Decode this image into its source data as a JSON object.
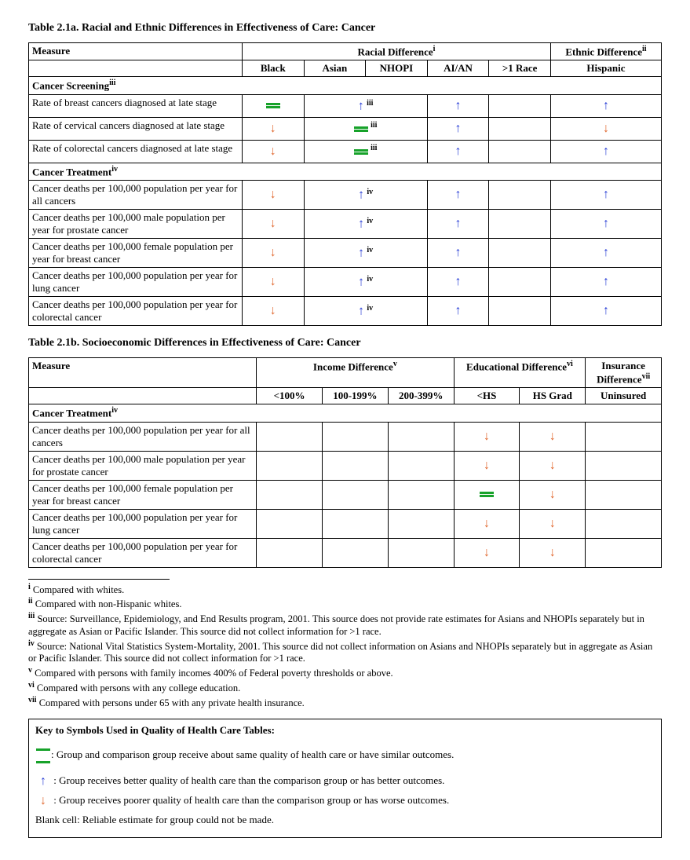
{
  "table_a": {
    "title": "Table 2.1a. Racial and Ethnic Differences in Effectiveness of Care: Cancer",
    "measure_header": "Measure",
    "racial_header": "Racial Difference",
    "racial_sup": "i",
    "ethnic_header": "Ethnic Difference",
    "ethnic_sup": "ii",
    "cols": [
      "Black",
      "Asian",
      "NHOPI",
      "AI/AN",
      ">1 Race",
      "Hispanic"
    ],
    "section1": {
      "label": "Cancer Screening",
      "sup": "iii"
    },
    "section2": {
      "label": "Cancer Treatment",
      "sup": "iv"
    },
    "rows_s1": [
      {
        "m": "Rate of breast cancers diagnosed at late stage",
        "cells": [
          "eq",
          "up_span_iii",
          "",
          "up",
          "",
          "up"
        ]
      },
      {
        "m": "Rate of cervical cancers diagnosed at late stage",
        "cells": [
          "down",
          "eq_span_iii",
          "",
          "up",
          "",
          "down"
        ]
      },
      {
        "m": "Rate of colorectal cancers diagnosed at late stage",
        "cells": [
          "down",
          "eq_span_iii",
          "",
          "up",
          "",
          "up"
        ]
      }
    ],
    "rows_s2": [
      {
        "m": "Cancer deaths per 100,000 population per year for all cancers",
        "cells": [
          "down",
          "up_span_iv",
          "",
          "up",
          "",
          "up"
        ]
      },
      {
        "m": "Cancer deaths per 100,000 male population per year for prostate cancer",
        "cells": [
          "down",
          "up_span_iv",
          "",
          "up",
          "",
          "up"
        ]
      },
      {
        "m": "Cancer deaths per 100,000 female population per year for breast cancer",
        "cells": [
          "down",
          "up_span_iv",
          "",
          "up",
          "",
          "up"
        ]
      },
      {
        "m": "Cancer deaths per 100,000 population per year for lung cancer",
        "cells": [
          "down",
          "up_span_iv",
          "",
          "up",
          "",
          "up"
        ]
      },
      {
        "m": "Cancer deaths per 100,000 population per year for colorectal cancer",
        "cells": [
          "down",
          "up_span_iv",
          "",
          "up",
          "",
          "up"
        ]
      }
    ]
  },
  "table_b": {
    "title": "Table 2.1b. Socioeconomic Differences in Effectiveness of Care: Cancer",
    "measure_header": "Measure",
    "income_header": "Income Difference",
    "income_sup": "v",
    "edu_header": "Educational Difference",
    "edu_sup": "vi",
    "ins_header": "Insurance Difference",
    "ins_sup": "vii",
    "cols": [
      "<100%",
      "100-199%",
      "200-399%",
      "<HS",
      "HS Grad",
      "Uninsured"
    ],
    "section": {
      "label": "Cancer Treatment",
      "sup": "iv"
    },
    "rows": [
      {
        "m": "Cancer deaths per 100,000 population per year for all cancers",
        "cells": [
          "",
          "",
          "",
          "down",
          "down",
          ""
        ]
      },
      {
        "m": "Cancer deaths per 100,000 male population per year for prostate cancer",
        "cells": [
          "",
          "",
          "",
          "down",
          "down",
          ""
        ]
      },
      {
        "m": "Cancer deaths per 100,000 female population per year for breast cancer",
        "cells": [
          "",
          "",
          "",
          "eq",
          "down",
          ""
        ]
      },
      {
        "m": "Cancer deaths per 100,000 population per year for lung cancer",
        "cells": [
          "",
          "",
          "",
          "down",
          "down",
          ""
        ]
      },
      {
        "m": "Cancer deaths per 100,000 population per year for colorectal cancer",
        "cells": [
          "",
          "",
          "",
          "down",
          "down",
          ""
        ]
      }
    ]
  },
  "footnotes": [
    {
      "sup": "i",
      "text": " Compared with whites."
    },
    {
      "sup": "ii",
      "text": " Compared with non-Hispanic whites."
    },
    {
      "sup": "iii",
      "text": " Source:  Surveillance, Epidemiology, and End Results program, 2001.  This source does not provide rate estimates for Asians and NHOPIs separately but in aggregate as Asian or Pacific Islander.  This source did not collect information for >1 race."
    },
    {
      "sup": "iv",
      "text": " Source: National Vital Statistics System-Mortality, 2001.  This source did not collect information on Asians and NHOPIs separately but in aggregate as Asian or Pacific Islander.  This source did not collect information for >1 race."
    },
    {
      "sup": "v",
      "text": " Compared with persons with family incomes 400% of Federal poverty thresholds or above."
    },
    {
      "sup": "vi",
      "text": " Compared with persons with any college education."
    },
    {
      "sup": "vii",
      "text": " Compared with persons under 65 with any private health insurance."
    }
  ],
  "key": {
    "title": "Key to Symbols Used in Quality of Health Care Tables:",
    "eq": ": Group and comparison group receive about same quality of health care or have similar outcomes.",
    "up": " : Group receives better quality of health care than the comparison group or has better outcomes.",
    "down": " : Group receives poorer quality of health care than the comparison group or has worse outcomes.",
    "blank": "Blank cell: Reliable estimate for group could not be made."
  }
}
